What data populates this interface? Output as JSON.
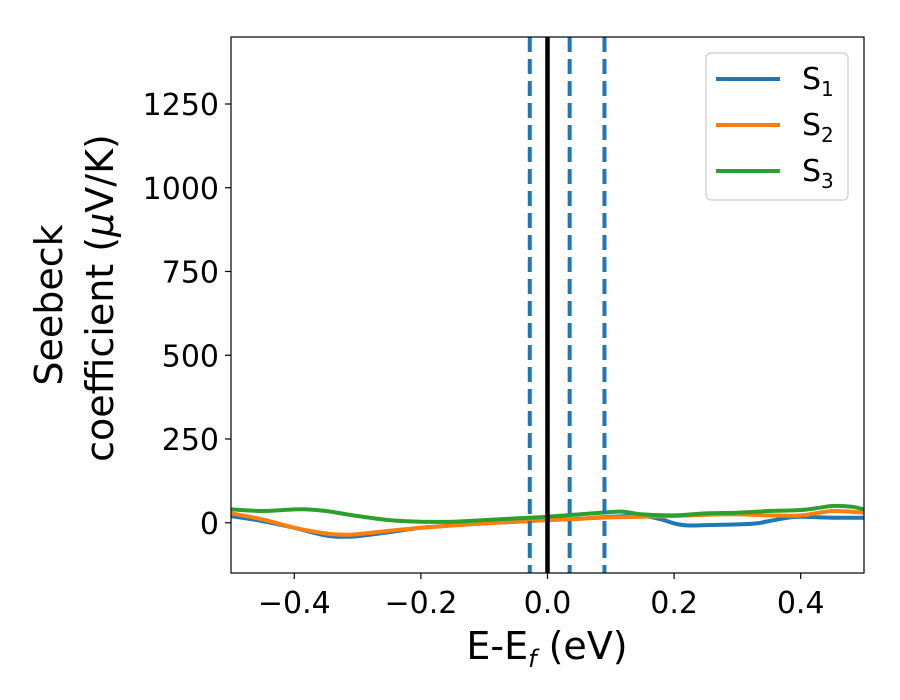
{
  "chart_data": {
    "type": "line",
    "xlabel": {
      "main": "E-E",
      "sub": "f",
      "unit": " (eV)"
    },
    "ylabel": {
      "line1": "Seebeck",
      "line2_prefix": "coefficient  (",
      "line2_mu": "μ",
      "line2_suffix": "V/K)"
    },
    "xlim": [
      -0.5,
      0.5
    ],
    "ylim": [
      -150,
      1450
    ],
    "x_ticks": [
      -0.4,
      -0.2,
      0.0,
      0.2,
      0.4
    ],
    "x_tick_labels": [
      "−0.4",
      "−0.2",
      "0.0",
      "0.2",
      "0.4"
    ],
    "y_ticks": [
      0,
      250,
      500,
      750,
      1000,
      1250
    ],
    "y_tick_labels": [
      "0",
      "250",
      "500",
      "750",
      "1000",
      "1250"
    ],
    "grid": false,
    "legend_position": "top-right",
    "vertical_lines": [
      {
        "x": -0.028,
        "style": "dashed",
        "color": "#1f77b4"
      },
      {
        "x": 0.0,
        "style": "solid",
        "color": "#000000"
      },
      {
        "x": 0.035,
        "style": "dashed",
        "color": "#1f77b4"
      },
      {
        "x": 0.09,
        "style": "dashed",
        "color": "#1f77b4"
      }
    ],
    "series": [
      {
        "name": "S",
        "name_sub": "1",
        "color": "#1f77b4",
        "x": [
          -0.5,
          -0.45,
          -0.4,
          -0.35,
          -0.32,
          -0.3,
          -0.25,
          -0.2,
          -0.15,
          -0.1,
          -0.05,
          0.0,
          0.05,
          0.1,
          0.15,
          0.18,
          0.2,
          0.22,
          0.25,
          0.3,
          0.33,
          0.35,
          0.38,
          0.4,
          0.45,
          0.5
        ],
        "y": [
          20,
          5,
          -15,
          -38,
          -42,
          -40,
          -28,
          -15,
          -8,
          -2,
          3,
          8,
          12,
          18,
          20,
          10,
          -2,
          -8,
          -7,
          -5,
          -2,
          5,
          15,
          18,
          15,
          15
        ]
      },
      {
        "name": "S",
        "name_sub": "2",
        "color": "#ff7f0e",
        "x": [
          -0.5,
          -0.45,
          -0.4,
          -0.35,
          -0.32,
          -0.3,
          -0.25,
          -0.2,
          -0.15,
          -0.1,
          -0.05,
          0.0,
          0.05,
          0.1,
          0.15,
          0.2,
          0.25,
          0.3,
          0.35,
          0.4,
          0.45,
          0.5
        ],
        "y": [
          28,
          10,
          -15,
          -32,
          -36,
          -34,
          -24,
          -15,
          -8,
          -2,
          3,
          8,
          12,
          16,
          18,
          20,
          24,
          25,
          22,
          22,
          35,
          30
        ]
      },
      {
        "name": "S",
        "name_sub": "3",
        "color": "#2ca02c",
        "x": [
          -0.5,
          -0.45,
          -0.4,
          -0.38,
          -0.35,
          -0.3,
          -0.25,
          -0.2,
          -0.15,
          -0.1,
          -0.05,
          0.0,
          0.05,
          0.1,
          0.12,
          0.15,
          0.2,
          0.25,
          0.3,
          0.35,
          0.4,
          0.43,
          0.45,
          0.48,
          0.5
        ],
        "y": [
          40,
          35,
          40,
          40,
          35,
          20,
          8,
          3,
          3,
          8,
          13,
          18,
          25,
          32,
          33,
          25,
          22,
          28,
          30,
          35,
          38,
          45,
          50,
          48,
          40
        ]
      }
    ]
  }
}
